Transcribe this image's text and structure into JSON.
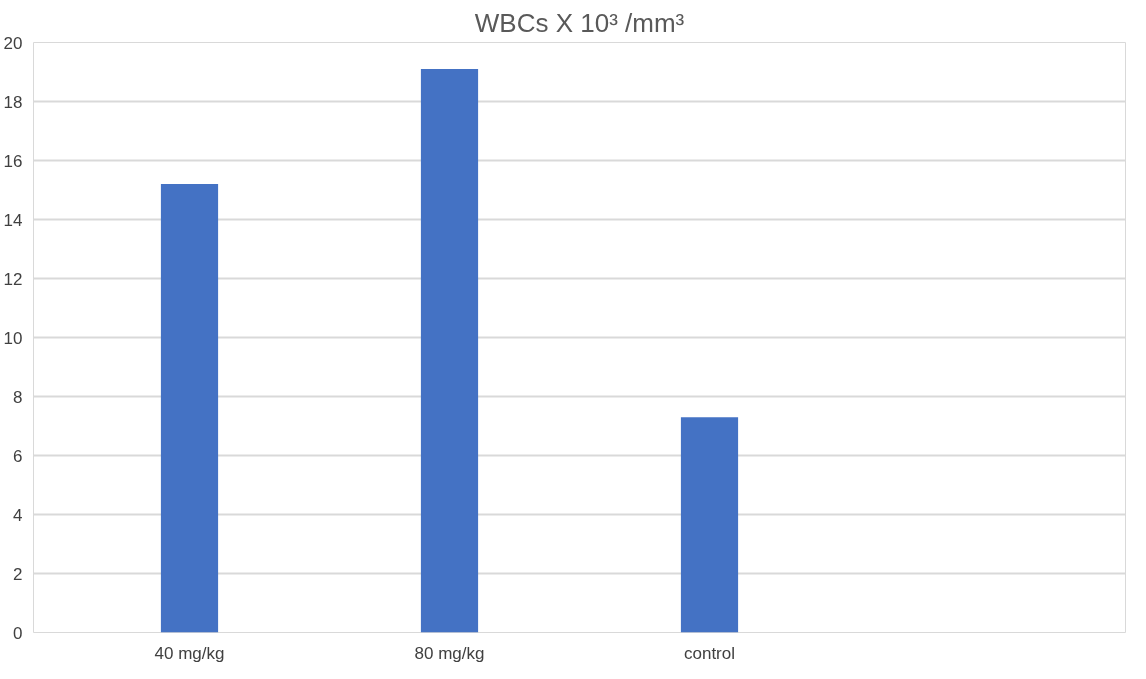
{
  "chart_data": {
    "type": "bar",
    "title": "WBCs X 10³ /mm³",
    "categories": [
      "40 mg/kg",
      "80 mg/kg",
      "control",
      null
    ],
    "values": [
      15.2,
      19.1,
      7.3,
      null
    ],
    "color": "#4472c4",
    "ylim": [
      0,
      20
    ],
    "yticks": [
      0,
      2,
      4,
      6,
      8,
      10,
      12,
      14,
      16,
      18,
      20
    ],
    "grid": "y"
  }
}
